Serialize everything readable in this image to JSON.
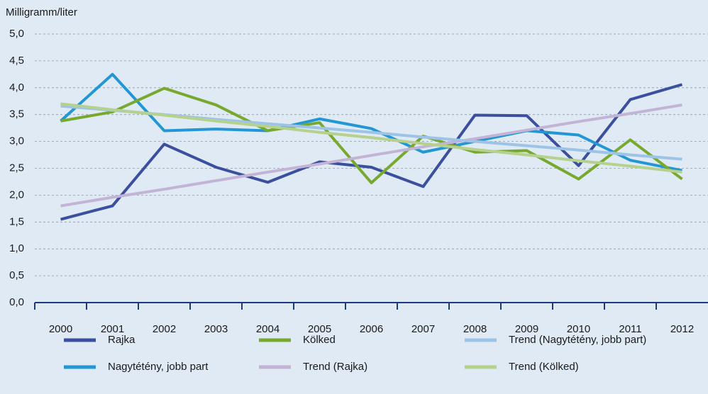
{
  "chart_data": {
    "type": "line",
    "y_axis_label": "Milligramm/liter",
    "categories": [
      "2000",
      "2001",
      "2002",
      "2003",
      "2004",
      "2005",
      "2006",
      "2007",
      "2008",
      "2009",
      "2010",
      "2011",
      "2012"
    ],
    "series": [
      {
        "name": "Rajka",
        "color": "#3b4f9f",
        "values": [
          1.55,
          1.8,
          2.95,
          2.52,
          2.24,
          2.62,
          2.52,
          2.16,
          3.49,
          3.48,
          2.55,
          3.78,
          4.06
        ]
      },
      {
        "name": "Nagytétény, jobb part",
        "color": "#2397d4",
        "values": [
          3.38,
          4.25,
          3.2,
          3.23,
          3.2,
          3.42,
          3.24,
          2.8,
          3.0,
          3.2,
          3.12,
          2.65,
          2.46
        ]
      },
      {
        "name": "Kölked",
        "color": "#78a92f",
        "values": [
          3.38,
          3.55,
          3.99,
          3.68,
          3.2,
          3.35,
          2.23,
          3.1,
          2.8,
          2.83,
          2.3,
          3.03,
          2.3
        ]
      },
      {
        "name": "Trend (Rajka)",
        "color": "#c3b3d4",
        "values": [
          1.8,
          1.96,
          2.11,
          2.27,
          2.43,
          2.58,
          2.74,
          2.9,
          3.05,
          3.21,
          3.37,
          3.52,
          3.68
        ]
      },
      {
        "name": "Trend (Nagytétény, jobb part)",
        "color": "#9dc4e7",
        "values": [
          3.66,
          3.58,
          3.5,
          3.41,
          3.33,
          3.25,
          3.17,
          3.08,
          3.0,
          2.92,
          2.84,
          2.75,
          2.67
        ]
      },
      {
        "name": "Trend (Kölked)",
        "color": "#b6d18e",
        "values": [
          3.7,
          3.59,
          3.49,
          3.38,
          3.28,
          3.17,
          3.07,
          2.96,
          2.85,
          2.75,
          2.64,
          2.54,
          2.43
        ]
      }
    ],
    "ylim": [
      0,
      5
    ],
    "yticks": [
      {
        "value": 0,
        "label": "0,0"
      },
      {
        "value": 0.5,
        "label": "0,5"
      },
      {
        "value": 1,
        "label": "1,0"
      },
      {
        "value": 1.5,
        "label": "1,5"
      },
      {
        "value": 2,
        "label": "2,0"
      },
      {
        "value": 2.5,
        "label": "2,5"
      },
      {
        "value": 3,
        "label": "3,0"
      },
      {
        "value": 3.5,
        "label": "3,5"
      },
      {
        "value": 4,
        "label": "4,0"
      },
      {
        "value": 4.5,
        "label": "4,5"
      },
      {
        "value": 5,
        "label": "5,0"
      }
    ],
    "grid": true,
    "legend": "bottom"
  }
}
